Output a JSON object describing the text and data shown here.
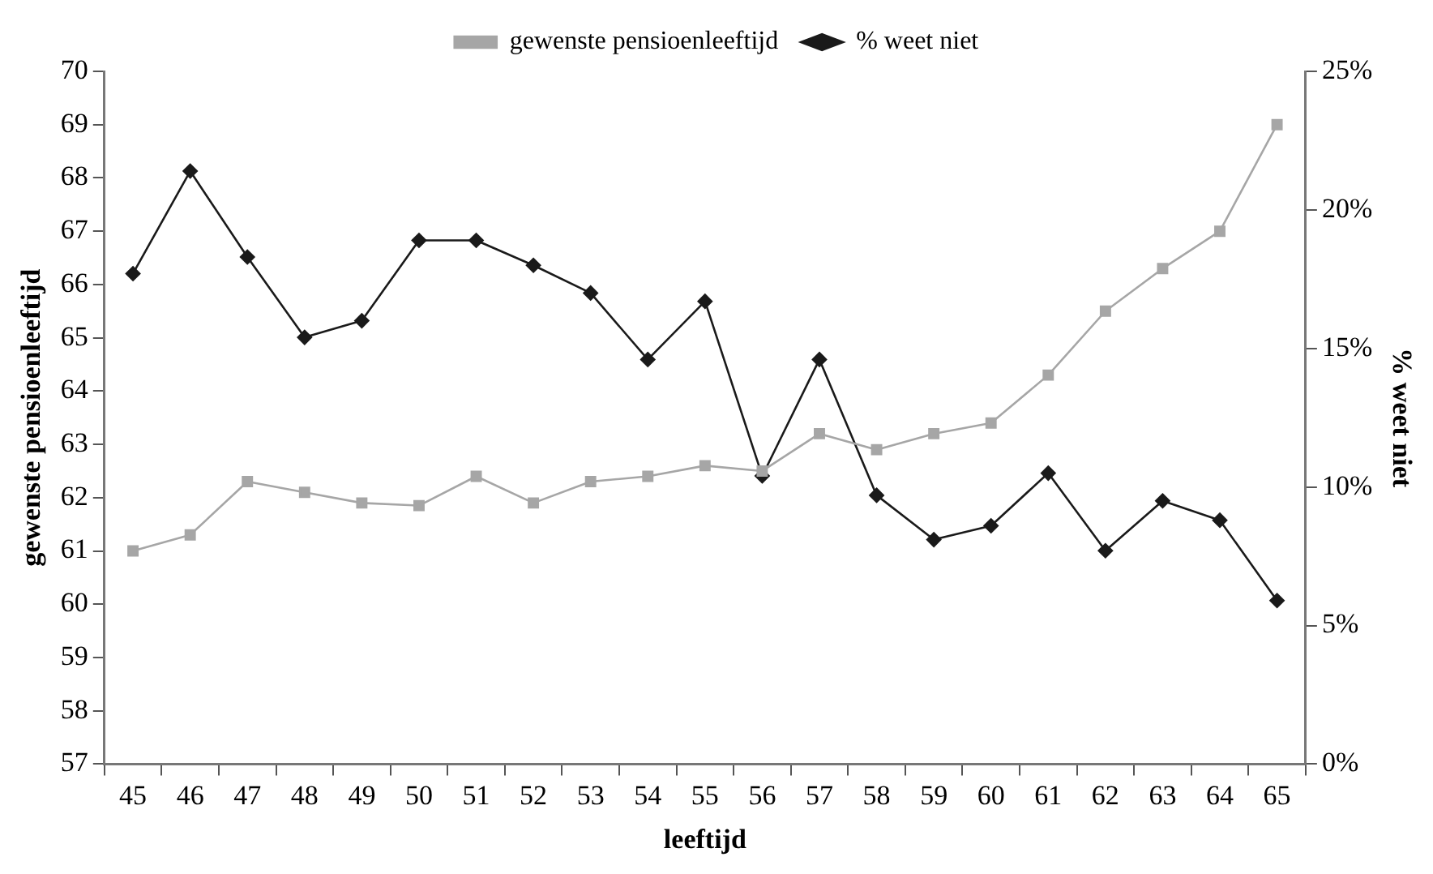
{
  "chart_data": {
    "type": "line",
    "xlabel": "leeftijd",
    "ylabel": "gewenste pensioenleeftijd",
    "y2label": "% weet niet",
    "categories": [
      "45",
      "46",
      "47",
      "48",
      "49",
      "50",
      "51",
      "52",
      "53",
      "54",
      "55",
      "56",
      "57",
      "58",
      "59",
      "60",
      "61",
      "62",
      "63",
      "64",
      "65"
    ],
    "series": [
      {
        "name": "gewenste pensioenleeftijd",
        "color": "#a6a6a6",
        "marker": "square",
        "values": [
          61.0,
          61.3,
          62.3,
          62.1,
          61.9,
          61.85,
          62.4,
          61.9,
          62.3,
          62.4,
          62.6,
          62.5,
          63.2,
          62.9,
          63.2,
          63.4,
          64.3,
          65.5,
          66.3,
          67.0,
          69.0
        ]
      },
      {
        "name": "% weet niet",
        "color": "#1a1a1a",
        "marker": "diamond",
        "axis": "y2",
        "values": [
          17.7,
          21.4,
          18.3,
          15.4,
          16.0,
          18.9,
          18.9,
          18.0,
          17.0,
          14.6,
          16.7,
          10.4,
          14.6,
          9.7,
          8.1,
          8.6,
          10.5,
          7.7,
          9.5,
          8.8,
          5.9
        ]
      }
    ],
    "ylim": [
      57,
      70
    ],
    "yticks": [
      57,
      58,
      59,
      60,
      61,
      62,
      63,
      64,
      65,
      66,
      67,
      68,
      69,
      70
    ],
    "y2lim": [
      0,
      25
    ],
    "y2ticks": [
      {
        "value": 0,
        "label": "0%"
      },
      {
        "value": 5,
        "label": "5%"
      },
      {
        "value": 10,
        "label": "10%"
      },
      {
        "value": 15,
        "label": "15%"
      },
      {
        "value": 20,
        "label": "20%"
      },
      {
        "value": 25,
        "label": "25%"
      }
    ],
    "grid": false,
    "legend": "top",
    "line_style": "solid"
  }
}
